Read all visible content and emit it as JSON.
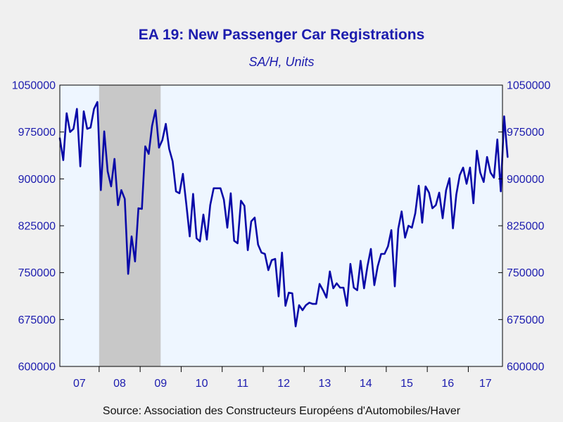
{
  "colors": {
    "page_background": "#f0f0f0",
    "plot_background": "#eef6ff",
    "recession_shade": "#c8c8c8",
    "line": "#0a0aa8",
    "title": "#1c1cae",
    "axis_labels": "#1c1cae",
    "source_text": "#111111"
  },
  "chart_data": {
    "type": "line",
    "title": "EA 19: New Passenger Car Registrations",
    "subtitle": "SA/H, Units",
    "source": "Source:  Association des Constructeurs Européens d'Automobiles/Haver",
    "ylim": [
      600000,
      1050000
    ],
    "y_ticks": [
      600000,
      675000,
      750000,
      825000,
      900000,
      975000,
      1050000
    ],
    "y_tick_labels": [
      "600000",
      "675000",
      "750000",
      "825000",
      "900000",
      "975000",
      "1050000"
    ],
    "secondary_y_axis": true,
    "x_range": [
      "2007-01",
      "2017-10"
    ],
    "x_tick_labels": [
      "07",
      "08",
      "09",
      "10",
      "11",
      "12",
      "13",
      "14",
      "15",
      "16",
      "17"
    ],
    "grid": false,
    "shaded_periods": [
      {
        "start": "2008-01",
        "end": "2009-06"
      }
    ],
    "series": [
      {
        "frequency": "monthly",
        "start": "2007-01",
        "values": [
          965000,
          930000,
          1005000,
          975000,
          980000,
          1012000,
          920000,
          1008000,
          980000,
          982000,
          1012000,
          1023000,
          882000,
          976000,
          912000,
          888000,
          932000,
          858000,
          882000,
          868000,
          748000,
          808000,
          768000,
          853000,
          852000,
          952000,
          940000,
          985000,
          1010000,
          950000,
          962000,
          988000,
          948000,
          928000,
          880000,
          877000,
          908000,
          860000,
          808000,
          876000,
          805000,
          800000,
          843000,
          803000,
          858000,
          885000,
          885000,
          885000,
          867000,
          822000,
          877000,
          801000,
          797000,
          865000,
          857000,
          786000,
          832000,
          838000,
          795000,
          782000,
          780000,
          754000,
          770000,
          772000,
          712000,
          782000,
          697000,
          718000,
          717000,
          664000,
          698000,
          690000,
          698000,
          702000,
          700000,
          700000,
          732000,
          722000,
          710000,
          752000,
          725000,
          733000,
          726000,
          726000,
          697000,
          764000,
          726000,
          722000,
          769000,
          725000,
          760000,
          788000,
          730000,
          760000,
          780000,
          780000,
          792000,
          818000,
          728000,
          820000,
          848000,
          806000,
          825000,
          822000,
          845000,
          889000,
          830000,
          888000,
          878000,
          853000,
          858000,
          878000,
          837000,
          882000,
          901000,
          821000,
          875000,
          906000,
          918000,
          892000,
          918000,
          861000,
          945000,
          910000,
          895000,
          935000,
          910000,
          902000,
          963000,
          880000,
          1000000,
          935000
        ]
      }
    ]
  }
}
